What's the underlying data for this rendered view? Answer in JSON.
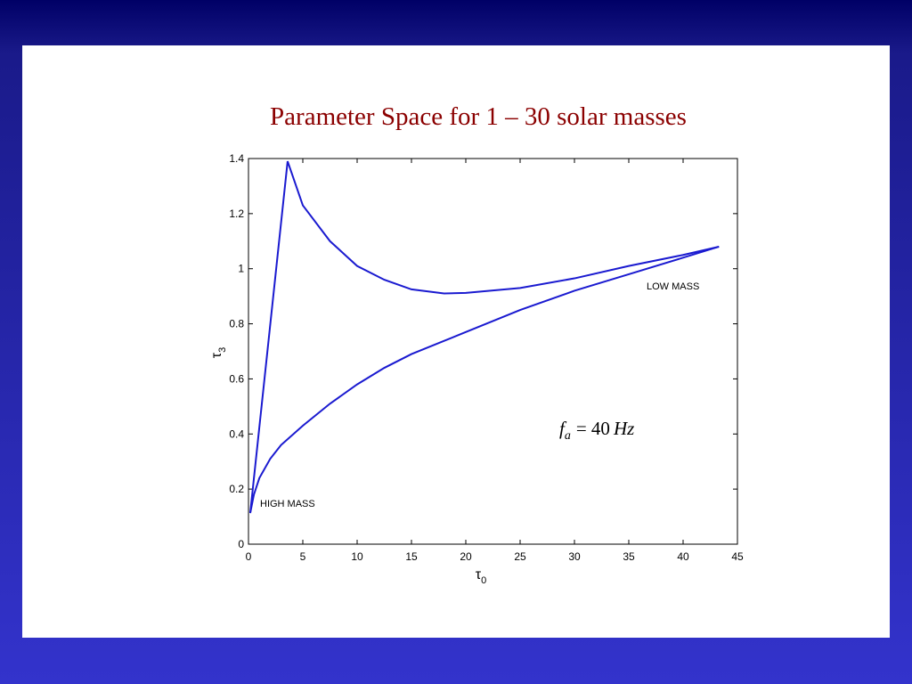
{
  "chart_data": {
    "type": "line",
    "title": "Parameter  Space for 1 – 30 solar masses",
    "xlabel": {
      "symbol": "τ",
      "subscript": "0"
    },
    "ylabel": {
      "symbol": "τ",
      "subscript": "3"
    },
    "xlim": [
      0,
      45
    ],
    "xticks": [
      0,
      5,
      10,
      15,
      20,
      25,
      30,
      35,
      40,
      45
    ],
    "ylim": [
      0,
      1.4
    ],
    "yticks": [
      0,
      0.2,
      0.4,
      0.6,
      0.8,
      1,
      1.2,
      1.4
    ],
    "color": "#1a1ad0",
    "lines": [
      {
        "x": [
          0.16,
          3.6,
          5,
          7.5,
          10,
          12.5,
          15,
          18,
          20,
          25,
          30,
          35,
          40,
          43.3
        ],
        "values": [
          0.113,
          1.39,
          1.23,
          1.1,
          1.01,
          0.96,
          0.925,
          0.91,
          0.912,
          0.93,
          0.965,
          1.01,
          1.05,
          1.08
        ]
      },
      {
        "x": [
          0.16,
          0.5,
          1,
          2,
          3,
          5,
          7.5,
          10,
          12.5,
          15,
          20,
          25,
          30,
          35,
          40,
          43.3
        ],
        "values": [
          0.113,
          0.18,
          0.24,
          0.31,
          0.36,
          0.43,
          0.51,
          0.58,
          0.64,
          0.69,
          0.77,
          0.85,
          0.92,
          0.98,
          1.04,
          1.08
        ]
      }
    ],
    "annotations": {
      "high": "HIGH MASS",
      "low": "LOW MASS",
      "frequency": {
        "f": "f",
        "sub": "a",
        "eq": "= 40",
        "unit": "Hz"
      }
    }
  }
}
